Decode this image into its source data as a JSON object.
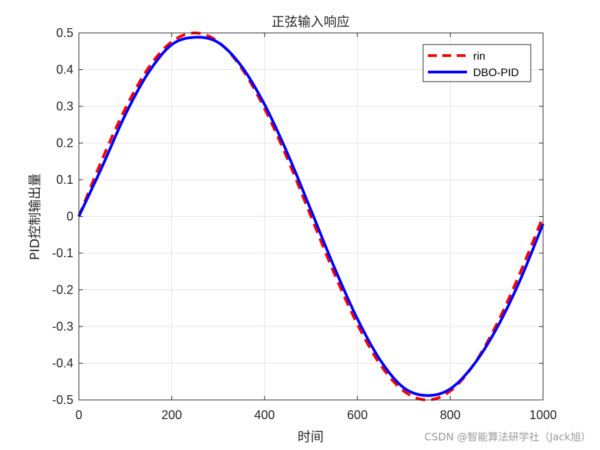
{
  "chart_data": {
    "type": "line",
    "title": "正弦输入响应",
    "xlabel": "时间",
    "ylabel": "PID控制输出量",
    "xlim": [
      0,
      1000
    ],
    "ylim": [
      -0.5,
      0.5
    ],
    "xticks": [
      0,
      200,
      400,
      600,
      800,
      1000
    ],
    "yticks": [
      -0.5,
      -0.4,
      -0.3,
      -0.2,
      -0.1,
      0,
      0.1,
      0.2,
      0.3,
      0.4,
      0.5
    ],
    "xtick_labels": [
      "0",
      "200",
      "400",
      "600",
      "800",
      "1000"
    ],
    "ytick_labels": [
      "-0.5",
      "-0.4",
      "-0.3",
      "-0.2",
      "-0.1",
      "0",
      "0.1",
      "0.2",
      "0.3",
      "0.4",
      "0.5"
    ],
    "grid": true,
    "legend_position": "top-right",
    "series": [
      {
        "name": "rin",
        "color": "#ff0000",
        "style": "dashed",
        "x": [
          0,
          50,
          100,
          150,
          200,
          250,
          300,
          350,
          400,
          450,
          500,
          550,
          600,
          650,
          700,
          750,
          800,
          850,
          900,
          950,
          1000
        ],
        "y": [
          0,
          0.155,
          0.294,
          0.405,
          0.476,
          0.5,
          0.476,
          0.405,
          0.294,
          0.155,
          0,
          -0.155,
          -0.294,
          -0.405,
          -0.476,
          -0.5,
          -0.476,
          -0.405,
          -0.294,
          -0.155,
          0
        ]
      },
      {
        "name": "DBO-PID",
        "color": "#0000ff",
        "style": "solid",
        "x": [
          0,
          50,
          100,
          150,
          200,
          250,
          300,
          350,
          400,
          450,
          500,
          550,
          600,
          650,
          700,
          750,
          800,
          850,
          900,
          950,
          1000
        ],
        "y": [
          0,
          0.135,
          0.277,
          0.392,
          0.468,
          0.488,
          0.474,
          0.41,
          0.305,
          0.17,
          0.017,
          -0.138,
          -0.279,
          -0.393,
          -0.467,
          -0.488,
          -0.47,
          -0.405,
          -0.305,
          -0.175,
          -0.02
        ]
      }
    ]
  },
  "watermark": "CSDN @智能算法研学社（Jack旭）"
}
